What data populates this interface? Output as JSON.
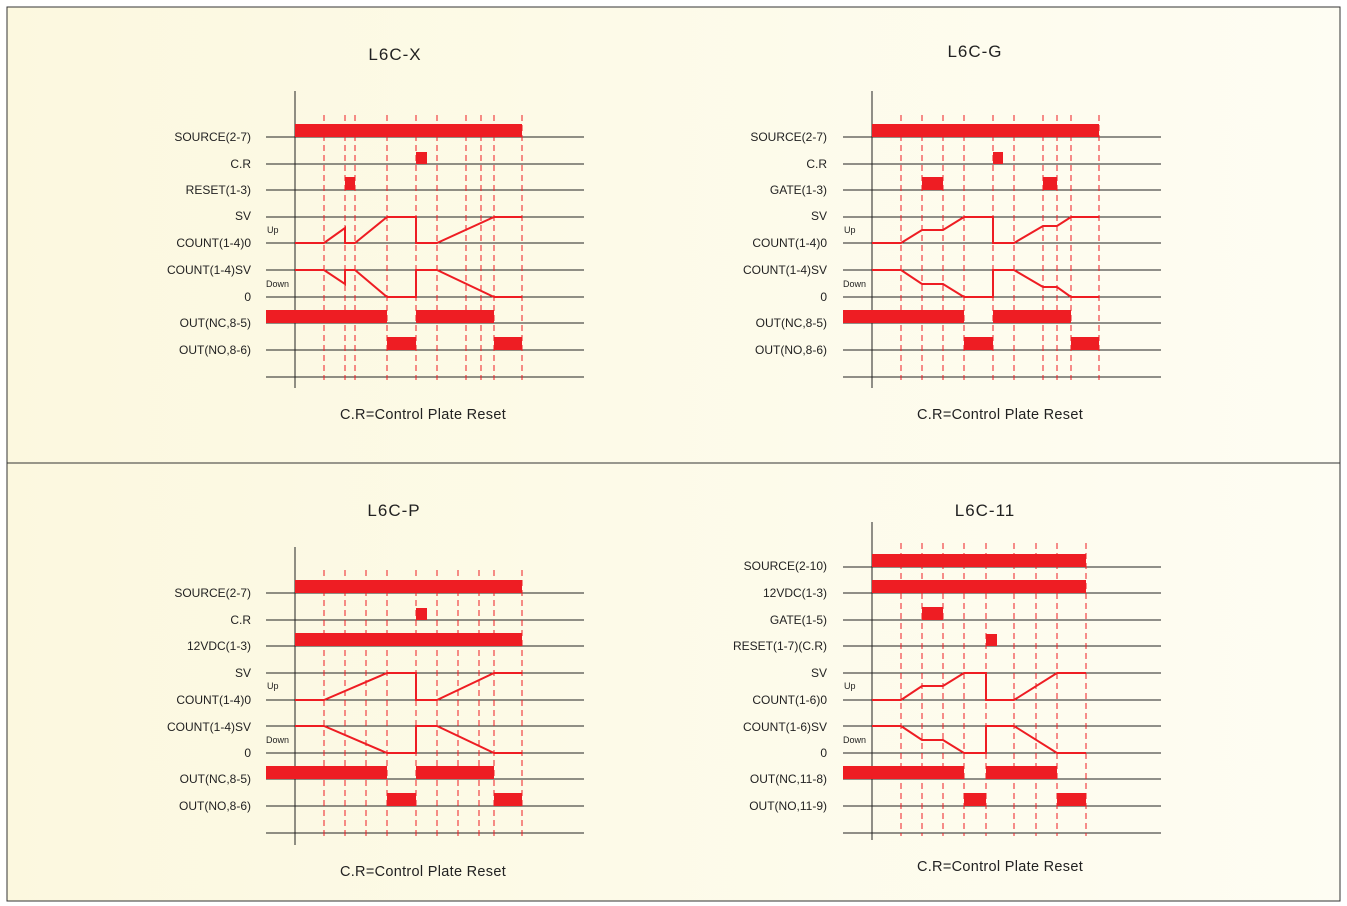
{
  "colors": {
    "background": "#fdf9e3",
    "signal": "#ee1d23",
    "line": "#222222",
    "border": "#333333"
  },
  "diagrams": [
    {
      "id": "l6c-x",
      "title": "L6C-X",
      "note": "C.R=Control Plate Reset",
      "up_label": "Up",
      "down_label": "Down",
      "rows": [
        {
          "label": "SOURCE(2-7)"
        },
        {
          "label": "C.R"
        },
        {
          "label": "RESET(1-3)"
        },
        {
          "label": "SV"
        },
        {
          "label": "COUNT(1-4)0"
        },
        {
          "label": "COUNT(1-4)SV"
        },
        {
          "label": "0"
        },
        {
          "label": "OUT(NC,8-5)"
        },
        {
          "label": "OUT(NO,8-6)"
        }
      ]
    },
    {
      "id": "l6c-g",
      "title": "L6C-G",
      "note": "C.R=Control Plate Reset",
      "up_label": "Up",
      "down_label": "Down",
      "rows": [
        {
          "label": "SOURCE(2-7)"
        },
        {
          "label": "C.R"
        },
        {
          "label": "GATE(1-3)"
        },
        {
          "label": "SV"
        },
        {
          "label": "COUNT(1-4)0"
        },
        {
          "label": "COUNT(1-4)SV"
        },
        {
          "label": "0"
        },
        {
          "label": "OUT(NC,8-5)"
        },
        {
          "label": "OUT(NO,8-6)"
        }
      ]
    },
    {
      "id": "l6c-p",
      "title": "L6C-P",
      "note": "C.R=Control Plate Reset",
      "up_label": "Up",
      "down_label": "Down",
      "rows": [
        {
          "label": "SOURCE(2-7)"
        },
        {
          "label": "C.R"
        },
        {
          "label": "12VDC(1-3)"
        },
        {
          "label": "SV"
        },
        {
          "label": "COUNT(1-4)0"
        },
        {
          "label": "COUNT(1-4)SV"
        },
        {
          "label": "0"
        },
        {
          "label": "OUT(NC,8-5)"
        },
        {
          "label": "OUT(NO,8-6)"
        }
      ]
    },
    {
      "id": "l6c-11",
      "title": "L6C-11",
      "note": "C.R=Control Plate Reset",
      "up_label": "Up",
      "down_label": "Down",
      "rows": [
        {
          "label": "SOURCE(2-10)"
        },
        {
          "label": "12VDC(1-3)"
        },
        {
          "label": "GATE(1-5)"
        },
        {
          "label": "RESET(1-7)(C.R)"
        },
        {
          "label": "SV"
        },
        {
          "label": "COUNT(1-6)0"
        },
        {
          "label": "COUNT(1-6)SV"
        },
        {
          "label": "0"
        },
        {
          "label": "OUT(NC,11-8)"
        },
        {
          "label": "OUT(NO,11-9)"
        }
      ]
    }
  ]
}
